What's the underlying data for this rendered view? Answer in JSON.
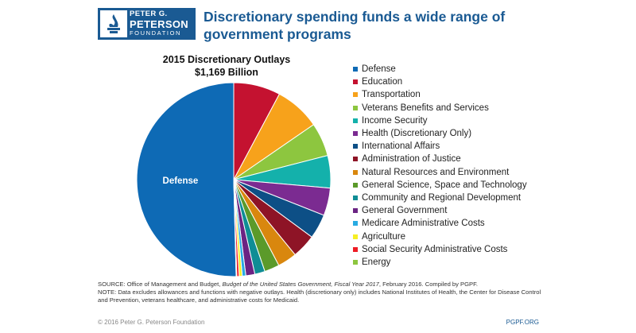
{
  "logo": {
    "line1": "PETER G.",
    "line2": "PETERSON",
    "line3": "FOUNDATION",
    "color": "#1a5a93"
  },
  "headline": "Discretionary spending funds a wide range of government programs",
  "chart_data": {
    "type": "pie",
    "title": "2015 Discretionary Outlays",
    "subtitle": "$1,169 Billion",
    "slice_labels": [
      "Defense"
    ],
    "legend_placement": "right",
    "slices": [
      {
        "name": "Defense",
        "value": 50.4,
        "color": "#0e6ab5"
      },
      {
        "name": "Education",
        "value": 7.8,
        "color": "#c41230"
      },
      {
        "name": "Transportation",
        "value": 7.6,
        "color": "#f7a21b"
      },
      {
        "name": "Veterans Benefits and Services",
        "value": 5.6,
        "color": "#8dc63f"
      },
      {
        "name": "Income Security",
        "value": 5.4,
        "color": "#14b1ab"
      },
      {
        "name": "Health (Discretionary Only)",
        "value": 4.6,
        "color": "#7b2b91"
      },
      {
        "name": "International Affairs",
        "value": 4.1,
        "color": "#0d4f86"
      },
      {
        "name": "Administration of Justice",
        "value": 4.0,
        "color": "#8e1426"
      },
      {
        "name": "Natural Resources and Environment",
        "value": 3.2,
        "color": "#d9870e"
      },
      {
        "name": "General Science, Space and Technology",
        "value": 2.5,
        "color": "#5b9a2a"
      },
      {
        "name": "Community and Regional Development",
        "value": 1.7,
        "color": "#0f8d95"
      },
      {
        "name": "General Government",
        "value": 1.5,
        "color": "#6b2483"
      },
      {
        "name": "Medicare Administrative Costs",
        "value": 0.6,
        "color": "#29abe2"
      },
      {
        "name": "Agriculture",
        "value": 0.5,
        "color": "#f6ef24"
      },
      {
        "name": "Social Security Administrative Costs",
        "value": 0.4,
        "color": "#ee1c25"
      },
      {
        "name": "Energy",
        "value": 0.1,
        "color": "#8dc63f"
      }
    ]
  },
  "notes": {
    "source_prefix": "SOURCE: Office of Management and Budget, ",
    "source_italic": "Budget of the United States Government, Fiscal Year 2017",
    "source_suffix": ", February 2016. Compiled by PGPF.",
    "note": "NOTE: Data excludes allowances and functions with negative outlays. Health (discretionary only) includes National Institutes of Health, the Center for Disease Control and Prevention, veterans healthcare, and administrative costs for Medicaid."
  },
  "footer": {
    "copyright": "© 2016 Peter G. Peterson Foundation",
    "site": "PGPF.ORG"
  }
}
